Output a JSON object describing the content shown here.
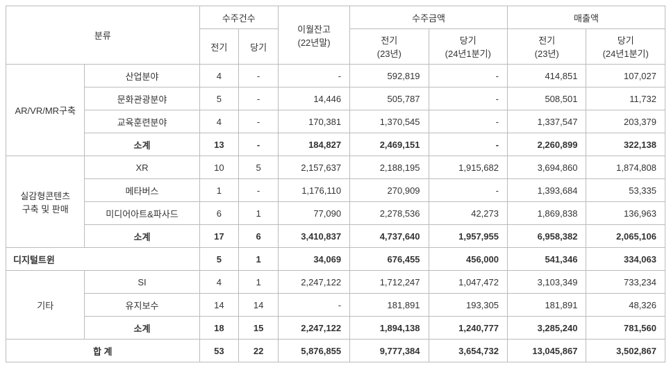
{
  "header": {
    "category": "분류",
    "orderCount": "수주건수",
    "orderCount_prev": "전기",
    "orderCount_curr": "당기",
    "carryover": "이월잔고\n(22년말)",
    "orderAmount": "수주금액",
    "orderAmount_prev": "전기\n(23년)",
    "orderAmount_curr": "당기\n(24년1분기)",
    "revenue": "매출액",
    "revenue_prev": "전기\n(23년)",
    "revenue_curr": "당기\n(24년1분기)"
  },
  "groups": [
    {
      "name": "AR/VR/MR구축",
      "rows": [
        {
          "label": "산업분야",
          "cnt_prev": "4",
          "cnt_curr": "-",
          "carry": "-",
          "oa_prev": "592,819",
          "oa_curr": "-",
          "rev_prev": "414,851",
          "rev_curr": "107,027"
        },
        {
          "label": "문화관광분야",
          "cnt_prev": "5",
          "cnt_curr": "-",
          "carry": "14,446",
          "oa_prev": "505,787",
          "oa_curr": "-",
          "rev_prev": "508,501",
          "rev_curr": "11,732"
        },
        {
          "label": "교육훈련분야",
          "cnt_prev": "4",
          "cnt_curr": "-",
          "carry": "170,381",
          "oa_prev": "1,370,545",
          "oa_curr": "-",
          "rev_prev": "1,337,547",
          "rev_curr": "203,379"
        }
      ],
      "subtotal": {
        "label": "소계",
        "cnt_prev": "13",
        "cnt_curr": "-",
        "carry": "184,827",
        "oa_prev": "2,469,151",
        "oa_curr": "-",
        "rev_prev": "2,260,899",
        "rev_curr": "322,138"
      }
    },
    {
      "name": "실감형콘텐츠\n구축 및 판매",
      "rows": [
        {
          "label": "XR",
          "cnt_prev": "10",
          "cnt_curr": "5",
          "carry": "2,157,637",
          "oa_prev": "2,188,195",
          "oa_curr": "1,915,682",
          "rev_prev": "3,694,860",
          "rev_curr": "1,874,808"
        },
        {
          "label": "메타버스",
          "cnt_prev": "1",
          "cnt_curr": "-",
          "carry": "1,176,110",
          "oa_prev": "270,909",
          "oa_curr": "-",
          "rev_prev": "1,393,684",
          "rev_curr": "53,335"
        },
        {
          "label": "미디어아트&파사드",
          "cnt_prev": "6",
          "cnt_curr": "1",
          "carry": "77,090",
          "oa_prev": "2,278,536",
          "oa_curr": "42,273",
          "rev_prev": "1,869,838",
          "rev_curr": "136,963"
        }
      ],
      "subtotal": {
        "label": "소계",
        "cnt_prev": "17",
        "cnt_curr": "6",
        "carry": "3,410,837",
        "oa_prev": "4,737,640",
        "oa_curr": "1,957,955",
        "rev_prev": "6,958,382",
        "rev_curr": "2,065,106"
      }
    },
    {
      "name": "디지털트윈",
      "single": true,
      "subtotal": {
        "label": "디지털트윈",
        "cnt_prev": "5",
        "cnt_curr": "1",
        "carry": "34,069",
        "oa_prev": "676,455",
        "oa_curr": "456,000",
        "rev_prev": "541,346",
        "rev_curr": "334,063"
      }
    },
    {
      "name": "기타",
      "rows": [
        {
          "label": "SI",
          "cnt_prev": "4",
          "cnt_curr": "1",
          "carry": "2,247,122",
          "oa_prev": "1,712,247",
          "oa_curr": "1,047,472",
          "rev_prev": "3,103,349",
          "rev_curr": "733,234"
        },
        {
          "label": "유지보수",
          "cnt_prev": "14",
          "cnt_curr": "14",
          "carry": "-",
          "oa_prev": "181,891",
          "oa_curr": "193,305",
          "rev_prev": "181,891",
          "rev_curr": "48,326"
        }
      ],
      "subtotal": {
        "label": "소계",
        "cnt_prev": "18",
        "cnt_curr": "15",
        "carry": "2,247,122",
        "oa_prev": "1,894,138",
        "oa_curr": "1,240,777",
        "rev_prev": "3,285,240",
        "rev_curr": "781,560"
      }
    }
  ],
  "total": {
    "label": "합 계",
    "cnt_prev": "53",
    "cnt_curr": "22",
    "carry": "5,876,855",
    "oa_prev": "9,777,384",
    "oa_curr": "3,654,732",
    "rev_prev": "13,045,867",
    "rev_curr": "3,502,867"
  }
}
